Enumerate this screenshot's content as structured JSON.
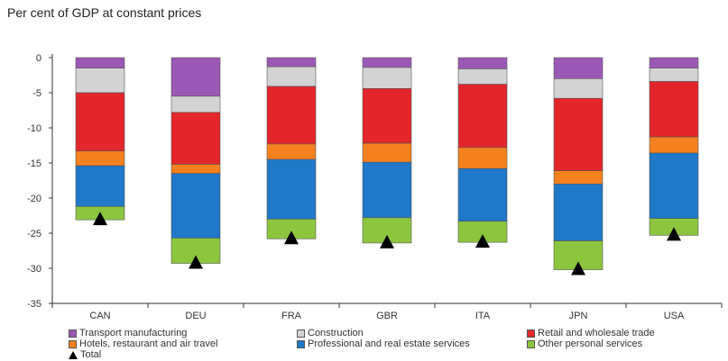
{
  "chart_data": {
    "type": "bar",
    "subtitle": "Per cent of GDP at constant prices",
    "categories": [
      "CAN",
      "DEU",
      "FRA",
      "GBR",
      "ITA",
      "JPN",
      "USA"
    ],
    "ylim": [
      -35,
      0
    ],
    "yticks": [
      0,
      -5,
      -10,
      -15,
      -20,
      -25,
      -30,
      -35
    ],
    "grid": false,
    "stacked": true,
    "series": [
      {
        "name": "Transport manufacturing",
        "color": "#9b59b6",
        "values": [
          -1.5,
          -5.5,
          -1.3,
          -1.4,
          -1.6,
          -3.0,
          -1.5
        ]
      },
      {
        "name": "Construction",
        "color": "#d3d3d3",
        "values": [
          -3.5,
          -2.3,
          -2.8,
          -3.0,
          -2.2,
          -2.8,
          -1.9
        ]
      },
      {
        "name": "Retail and wholesale trade",
        "color": "#e3262b",
        "values": [
          -8.3,
          -7.4,
          -8.2,
          -7.8,
          -9.0,
          -10.3,
          -7.9
        ]
      },
      {
        "name": "Hotels, restaurant and air travel",
        "color": "#f5821f",
        "values": [
          -2.1,
          -1.3,
          -2.2,
          -2.7,
          -3.0,
          -1.9,
          -2.3
        ]
      },
      {
        "name": "Professional and real estate services",
        "color": "#1f78c8",
        "values": [
          -5.8,
          -9.2,
          -8.5,
          -7.9,
          -7.5,
          -8.1,
          -9.3
        ]
      },
      {
        "name": "Other personal services",
        "color": "#8cc63f",
        "values": [
          -1.9,
          -3.6,
          -2.8,
          -3.6,
          -3.0,
          -4.1,
          -2.4
        ]
      }
    ],
    "total": {
      "name": "Total",
      "marker": "black-triangle",
      "values": [
        -23.1,
        -29.3,
        -25.8,
        -26.4,
        -26.3,
        -30.2,
        -25.3
      ]
    },
    "legend_position": "bottom"
  }
}
